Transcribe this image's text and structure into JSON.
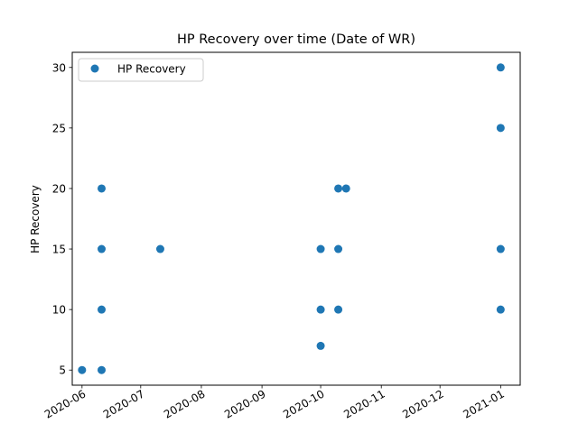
{
  "chart_data": {
    "type": "scatter",
    "title": "HP Recovery over time (Date of WR)",
    "xlabel": "",
    "ylabel": "HP Recovery",
    "x_type": "date",
    "xlim": [
      "2020-05-27",
      "2021-01-11"
    ],
    "ylim": [
      3.75,
      31.25
    ],
    "x_ticks": [
      "2020-06-01",
      "2020-07-01",
      "2020-08-01",
      "2020-09-01",
      "2020-10-01",
      "2020-11-01",
      "2020-12-01",
      "2021-01-01"
    ],
    "x_tick_labels": [
      "2020-06",
      "2020-07",
      "2020-08",
      "2020-09",
      "2020-10",
      "2020-11",
      "2020-12",
      "2021-01"
    ],
    "y_ticks": [
      5,
      10,
      15,
      20,
      25,
      30
    ],
    "y_tick_labels": [
      "5",
      "10",
      "15",
      "20",
      "25",
      "30"
    ],
    "grid": false,
    "legend": {
      "position": "top-left",
      "entries": [
        "HP Recovery"
      ]
    },
    "series": [
      {
        "name": "HP Recovery",
        "color": "#1f77b4",
        "points": [
          {
            "x": "2020-06-01",
            "y": 5
          },
          {
            "x": "2020-06-11",
            "y": 5
          },
          {
            "x": "2020-06-11",
            "y": 10
          },
          {
            "x": "2020-06-11",
            "y": 15
          },
          {
            "x": "2020-06-11",
            "y": 20
          },
          {
            "x": "2020-07-11",
            "y": 15
          },
          {
            "x": "2020-10-01",
            "y": 7
          },
          {
            "x": "2020-10-01",
            "y": 10
          },
          {
            "x": "2020-10-01",
            "y": 15
          },
          {
            "x": "2020-10-10",
            "y": 10
          },
          {
            "x": "2020-10-10",
            "y": 15
          },
          {
            "x": "2020-10-10",
            "y": 20
          },
          {
            "x": "2020-10-14",
            "y": 20
          },
          {
            "x": "2021-01-01",
            "y": 10
          },
          {
            "x": "2021-01-01",
            "y": 15
          },
          {
            "x": "2021-01-01",
            "y": 25
          },
          {
            "x": "2021-01-01",
            "y": 30
          }
        ]
      }
    ]
  }
}
